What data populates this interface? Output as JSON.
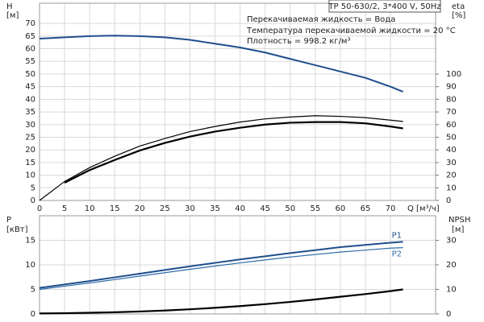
{
  "chart_data": [
    {
      "type": "line",
      "title": "TP 50-630/2, 3*400 V, 50Hz",
      "annotations": [
        "Перекачиваемая жидкость = Вода",
        "Температура перекачиваемой жидкости = 20 °C",
        "Плотность = 998.2 кг/м³"
      ],
      "x_label": "Q [м³/ч]",
      "y_label": "H",
      "y_unit": "[м]",
      "y2_label": "eta",
      "y2_unit": "[%]",
      "x": [
        0,
        5,
        10,
        15,
        20,
        25,
        30,
        35,
        40,
        45,
        50,
        55,
        60,
        65,
        70,
        72.5
      ],
      "xlim": [
        0,
        79
      ],
      "xticks": [
        0,
        5,
        10,
        15,
        20,
        25,
        30,
        35,
        40,
        45,
        50,
        55,
        60,
        65,
        70
      ],
      "ylim": [
        0,
        78
      ],
      "yticks": [
        0,
        5,
        10,
        15,
        20,
        25,
        30,
        35,
        40,
        45,
        50,
        55,
        60,
        65,
        70
      ],
      "y2lim": [
        0,
        156
      ],
      "y2ticks": [
        0,
        10,
        20,
        30,
        40,
        50,
        60,
        70,
        80,
        90,
        100
      ],
      "grid": true,
      "series": [
        {
          "color": "#1f4e8c",
          "width": 2,
          "values": [
            64,
            64.5,
            65,
            65.2,
            65,
            64.5,
            63.5,
            62,
            60.5,
            58.5,
            56,
            53.5,
            51,
            48.5,
            45,
            43
          ]
        },
        {
          "color": "#000000",
          "width": 1.2,
          "axis": "y2",
          "values": [
            0,
            15,
            26,
            35,
            43,
            49,
            54.5,
            58.5,
            62,
            64.5,
            66,
            67,
            66.5,
            65.5,
            63.5,
            62.5
          ]
        },
        {
          "color": "#000000",
          "width": 2.2,
          "axis": "y2",
          "values": [
            null,
            14,
            24,
            32,
            39.5,
            45.5,
            50.5,
            54.5,
            57.5,
            60,
            61.5,
            62,
            62,
            61,
            58.5,
            57
          ]
        }
      ]
    },
    {
      "type": "line",
      "y_label": "P",
      "y_unit": "[кВт]",
      "y2_label": "NPSH",
      "y2_unit": "[м]",
      "x": [
        0,
        5,
        10,
        15,
        20,
        25,
        30,
        35,
        40,
        45,
        50,
        55,
        60,
        65,
        70,
        72.5
      ],
      "xlim": [
        0,
        79
      ],
      "ylim": [
        0,
        20
      ],
      "yticks": [
        0,
        5,
        10,
        15
      ],
      "y2lim": [
        0,
        40
      ],
      "y2ticks": [
        0,
        10,
        20,
        30
      ],
      "grid": true,
      "series": [
        {
          "name": "P1",
          "color": "#1f4e8c",
          "width": 2,
          "values": [
            5.3,
            6.0,
            6.7,
            7.45,
            8.2,
            8.95,
            9.7,
            10.4,
            11.1,
            11.75,
            12.4,
            13.0,
            13.6,
            14.05,
            14.5,
            14.7
          ]
        },
        {
          "name": "P2",
          "color": "#2f6aa8",
          "width": 1.2,
          "values": [
            5.0,
            5.65,
            6.3,
            7.0,
            7.7,
            8.4,
            9.1,
            9.75,
            10.4,
            11.0,
            11.6,
            12.1,
            12.6,
            13.0,
            13.4,
            13.5
          ]
        },
        {
          "color": "#000000",
          "width": 2.2,
          "axis": "y2",
          "values": [
            0.2,
            0.3,
            0.5,
            0.7,
            1.0,
            1.4,
            1.9,
            2.5,
            3.2,
            4.0,
            4.9,
            5.9,
            7.0,
            8.1,
            9.3,
            10
          ]
        }
      ]
    }
  ]
}
